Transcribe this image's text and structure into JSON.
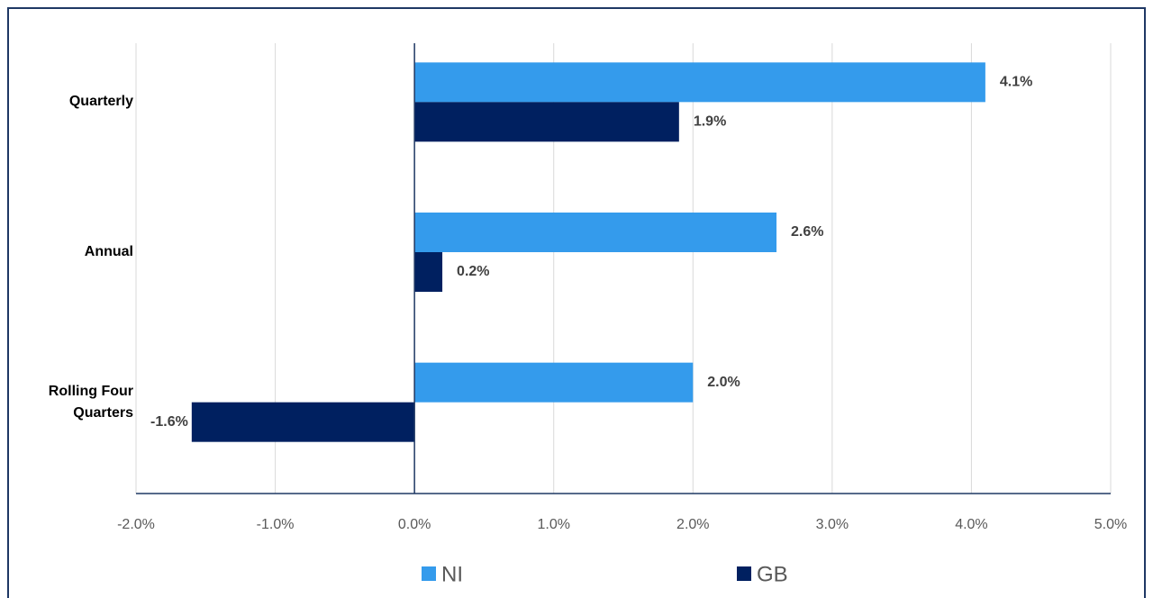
{
  "chart_data": {
    "type": "hbar",
    "categories": [
      "Quarterly",
      "Annual",
      "Rolling Four Quarters"
    ],
    "series": [
      {
        "name": "NI",
        "color": "#349bec",
        "values": [
          4.1,
          2.6,
          2.0
        ],
        "value_labels": [
          "4.1%",
          "2.6%",
          "2.0%"
        ]
      },
      {
        "name": "GB",
        "color": "#002060",
        "values": [
          1.9,
          0.2,
          -1.6
        ],
        "value_labels": [
          "1.9%",
          "0.2%",
          "-1.6%"
        ]
      }
    ],
    "xlim": [
      -2,
      5
    ],
    "xticks": [
      {
        "value": -2,
        "label": "-2.0%"
      },
      {
        "value": -1,
        "label": "-1.0%"
      },
      {
        "value": 0,
        "label": "0.0%"
      },
      {
        "value": 1,
        "label": "1.0%"
      },
      {
        "value": 2,
        "label": "2.0%"
      },
      {
        "value": 3,
        "label": "3.0%"
      },
      {
        "value": 4,
        "label": "4.0%"
      },
      {
        "value": 5,
        "label": "5.0%"
      }
    ],
    "grid": true,
    "legend": "bottom"
  }
}
